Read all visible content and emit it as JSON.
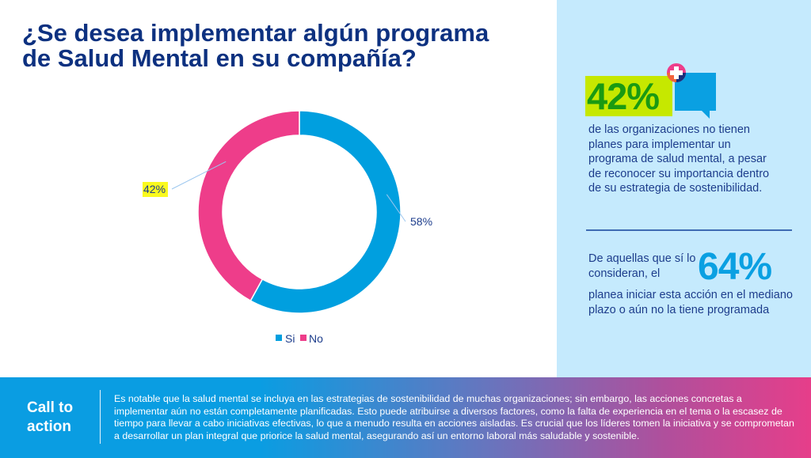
{
  "title": {
    "line1": "¿Se desea implementar algún programa",
    "line2": "de Salud Mental en su compañía?"
  },
  "chart_data": {
    "type": "pie",
    "variant": "donut",
    "title": "¿Se desea implementar algún programa de Salud Mental en su compañía?",
    "categories": [
      "Si",
      "No"
    ],
    "values": [
      58,
      42
    ],
    "labels": [
      "58%",
      "42%"
    ],
    "colors": [
      "#009fdf",
      "#ee3d8a"
    ],
    "highlighted_label": "42%",
    "highlight_color": "#fafa1e",
    "legend": {
      "placement": "bottom",
      "entries": [
        "Si",
        "No"
      ]
    }
  },
  "stats": {
    "stat1": {
      "value": "42%",
      "text": "de las organizaciones no tienen planes para implementar un programa de salud mental, a pesar de reconocer su importancia dentro de su estrategia de sostenibilidad.",
      "icon": "speech-bubble-plus-icon"
    },
    "stat2": {
      "lead": "De aquellas que sí lo consideran, el",
      "value": "64%",
      "text": "planea iniciar esta acción en el mediano plazo o aún no la tiene programada"
    }
  },
  "footer": {
    "label": "Call to action",
    "text": "Es notable que la salud mental se incluya en las estrategias de sostenibilidad de muchas organizaciones; sin embargo, las acciones concretas a implementar aún no están completamente planificadas. Esto puede atribuirse a diversos factores, como la falta de experiencia en el tema o la escasez de tiempo para llevar a cabo iniciativas efectivas, lo que a menudo resulta en acciones aisladas. Es crucial que los líderes tomen la iniciativa y se comprometan a desarrollar un plan integral que priorice la salud mental, asegurando así un entorno laboral más saludable y sostenible."
  },
  "colors": {
    "title": "#0d3180",
    "panel_bg": "#c5eafd",
    "accent_green_bg": "#c6e800",
    "accent_green_text": "#1a9a12",
    "accent_blue": "#0aa0e2",
    "accent_pink": "#ee3d8a"
  }
}
